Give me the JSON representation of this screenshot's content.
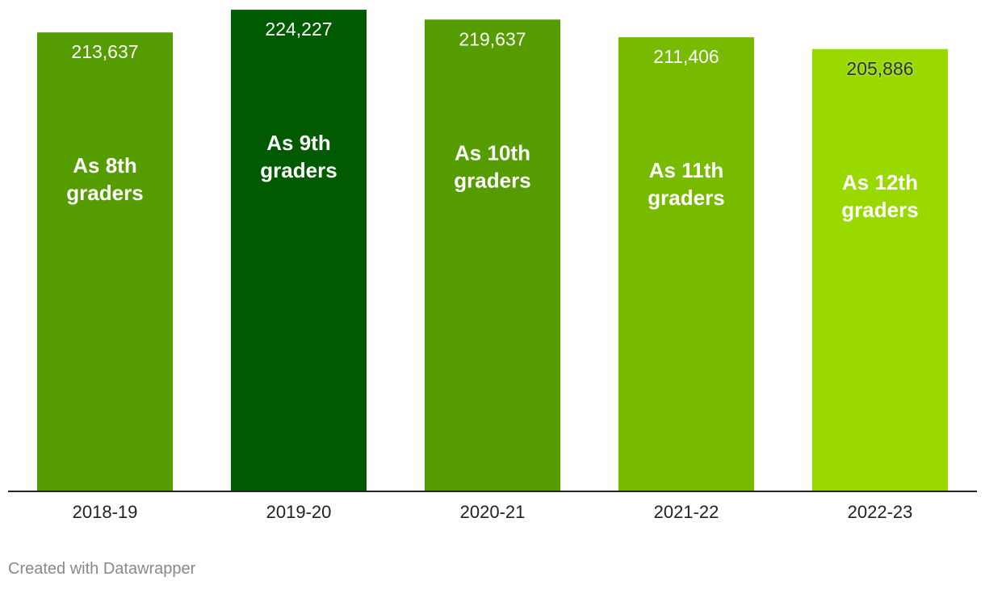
{
  "chart_data": {
    "type": "bar",
    "categories": [
      "2018-19",
      "2019-20",
      "2020-21",
      "2021-22",
      "2022-23"
    ],
    "values": [
      213637,
      224227,
      219637,
      211406,
      205886
    ],
    "value_labels": [
      "213,637",
      "224,227",
      "219,637",
      "211,406",
      "205,886"
    ],
    "annotations": [
      [
        "As 8th",
        "graders"
      ],
      [
        "As 9th",
        "graders"
      ],
      [
        "As 10th",
        "graders"
      ],
      [
        "As 11th",
        "graders"
      ],
      [
        "As 12th",
        "graders"
      ]
    ],
    "colors": [
      "#559c00",
      "#005b00",
      "#559c00",
      "#77ba00",
      "#99d900"
    ],
    "ylim": [
      0,
      225000
    ],
    "grid": false,
    "legend": "none",
    "title": "",
    "xlabel": "",
    "ylabel": ""
  },
  "footer": {
    "credit": "Created with Datawrapper"
  }
}
